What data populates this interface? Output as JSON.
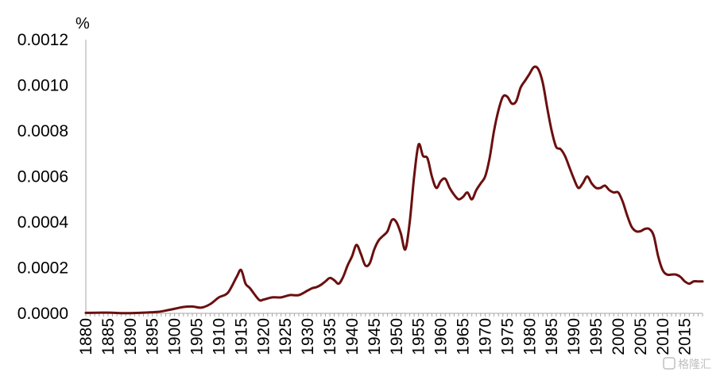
{
  "chart_data": {
    "type": "line",
    "title": "",
    "xlabel": "",
    "ylabel": "%",
    "xlim": [
      1880,
      2019
    ],
    "ylim": [
      0,
      0.0012
    ],
    "grid": false,
    "legend": "none",
    "line_color": "#6b0f0f",
    "x_ticks": [
      "1880",
      "1885",
      "1890",
      "1895",
      "1900",
      "1905",
      "1910",
      "1915",
      "1920",
      "1925",
      "1930",
      "1935",
      "1940",
      "1945",
      "1950",
      "1955",
      "1960",
      "1965",
      "1970",
      "1975",
      "1980",
      "1985",
      "1990",
      "1995",
      "2000",
      "2005",
      "2010",
      "2015"
    ],
    "y_ticks": [
      "0.0000",
      "0.0002",
      "0.0004",
      "0.0006",
      "0.0008",
      "0.0010",
      "0.0012"
    ],
    "series": [
      {
        "x": [
          1880,
          1885,
          1888,
          1890,
          1893,
          1896,
          1898,
          1900,
          1902,
          1904,
          1906,
          1908,
          1910,
          1912,
          1914,
          1915,
          1916,
          1917,
          1919,
          1920,
          1922,
          1924,
          1926,
          1928,
          1930,
          1931,
          1932,
          1933,
          1934,
          1935,
          1936,
          1937,
          1938,
          1939,
          1940,
          1941,
          1942,
          1943,
          1944,
          1945,
          1946,
          1947,
          1948,
          1949,
          1950,
          1951,
          1952,
          1953,
          1954,
          1955,
          1956,
          1957,
          1958,
          1959,
          1960,
          1961,
          1962,
          1963,
          1964,
          1965,
          1966,
          1967,
          1968,
          1969,
          1970,
          1971,
          1972,
          1973,
          1974,
          1975,
          1976,
          1977,
          1978,
          1979,
          1980,
          1981,
          1982,
          1983,
          1984,
          1985,
          1986,
          1987,
          1988,
          1989,
          1990,
          1991,
          1992,
          1993,
          1994,
          1995,
          1996,
          1997,
          1998,
          1999,
          2000,
          2001,
          2002,
          2003,
          2004,
          2005,
          2006,
          2007,
          2008,
          2009,
          2010,
          2011,
          2012,
          2013,
          2014,
          2015,
          2016,
          2017,
          2018,
          2019
        ],
        "y": [
          2e-06,
          3e-06,
          1e-06,
          1e-06,
          3e-06,
          6e-06,
          1.2e-05,
          2e-05,
          2.8e-05,
          3e-05,
          2.5e-05,
          4e-05,
          7e-05,
          9e-05,
          0.00016,
          0.00019,
          0.00013,
          0.00011,
          6e-05,
          6e-05,
          7e-05,
          7e-05,
          8e-05,
          8e-05,
          0.0001,
          0.00011,
          0.000115,
          0.000125,
          0.00014,
          0.000155,
          0.000145,
          0.00013,
          0.00016,
          0.00021,
          0.00025,
          0.0003,
          0.00026,
          0.00021,
          0.00022,
          0.00028,
          0.00032,
          0.00034,
          0.00036,
          0.00041,
          0.0004,
          0.00035,
          0.00028,
          0.0004,
          0.0006,
          0.00074,
          0.00069,
          0.00068,
          0.0006,
          0.00055,
          0.00058,
          0.00059,
          0.00055,
          0.00052,
          0.0005,
          0.00051,
          0.00053,
          0.0005,
          0.00054,
          0.00057,
          0.0006,
          0.00068,
          0.0008,
          0.00089,
          0.00095,
          0.00095,
          0.00092,
          0.00093,
          0.00099,
          0.00102,
          0.00105,
          0.00108,
          0.00107,
          0.00101,
          0.0009,
          0.0008,
          0.00073,
          0.00072,
          0.00069,
          0.00064,
          0.00059,
          0.00055,
          0.00057,
          0.0006,
          0.00057,
          0.00055,
          0.00055,
          0.00056,
          0.00054,
          0.00053,
          0.00053,
          0.00049,
          0.00043,
          0.00038,
          0.00036,
          0.00036,
          0.00037,
          0.00037,
          0.00034,
          0.00025,
          0.00019,
          0.00017,
          0.00017,
          0.00017,
          0.00016,
          0.00014,
          0.00013,
          0.00014,
          0.00014,
          0.00014
        ]
      }
    ]
  },
  "watermark": "格隆汇"
}
